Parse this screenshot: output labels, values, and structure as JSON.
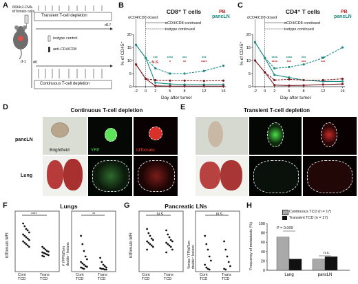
{
  "panels": {
    "A": "A",
    "B": "B",
    "C": "C",
    "D": "D",
    "E": "E",
    "F": "F",
    "G": "G",
    "H": "H"
  },
  "panelA": {
    "mouse_label_1": "6694c2-OVA-",
    "mouse_label_2": "tdTomato cells",
    "d_minus1": "d-1",
    "d0": "d0",
    "d17": "d17",
    "transient_label": "Transient T-cell depletion",
    "isotype_label": "isotype control",
    "anti_label": "anti-CD4/CD8",
    "continuous_label": "Continuous T-cell depletion"
  },
  "panelB": {
    "title": "CD8⁺ T cells",
    "legend_pb": "PB",
    "legend_panc": "pancLN",
    "dosed": "αCD4/CD8 dosed",
    "cont1": "αCD4/CD8 continued",
    "cont2": "isotype continued",
    "ylabel": "% of CD45⁺",
    "xlabel": "Day after tumor",
    "sig": [
      {
        "text": "***",
        "color": "#1a8a82"
      },
      {
        "text": "N.S.",
        "color": "#c0282c"
      },
      {
        "text": "****",
        "color": "#1a8a82"
      },
      {
        "text": "*",
        "color": "#c0282c"
      },
      {
        "text": "***",
        "color": "#1a8a82"
      },
      {
        "text": "**",
        "color": "#c0282c"
      },
      {
        "text": "***",
        "color": "#1a8a82"
      },
      {
        "text": "****",
        "color": "#c0282c"
      }
    ]
  },
  "panelC": {
    "title": "CD4⁺ T cells",
    "legend_pb": "PB",
    "legend_panc": "pancLN",
    "dosed": "αCD4/CD8 dosed",
    "cont1": "αCD4/CD8 continued",
    "cont2": "isotype continued",
    "ylabel": "% of CD45⁺",
    "xlabel": "Day after tumor",
    "sig": [
      {
        "text": "****",
        "color": "#1a8a82"
      },
      {
        "text": "****",
        "color": "#c0282c"
      },
      {
        "text": "****",
        "color": "#1a8a82"
      },
      {
        "text": "***",
        "color": "#c0282c"
      },
      {
        "text": "***",
        "color": "#1a8a82"
      },
      {
        "text": "***",
        "color": "#c0282c"
      },
      {
        "text": "***",
        "color": "#1a8a82"
      },
      {
        "text": "***",
        "color": "#c0282c"
      }
    ]
  },
  "panelD": {
    "title": "Continuous T-cell depletion",
    "row1": "pancLN",
    "row2": "Lung",
    "brightfield": "Brightfield",
    "yfp": "YFP",
    "tdtomato": "tdTomato"
  },
  "panelE": {
    "title": "Transient T-cell depletion"
  },
  "panelF": {
    "title": "Lungs",
    "ylabel1": "tdTomato MFI",
    "ylabel2a": "# YFP/tdTom",
    "ylabel2b": "double⁺ lesions",
    "sig1": "****",
    "sig2": "**",
    "x1": "Cont",
    "x2": "TCD",
    "x3": "Trans",
    "x4": "TCD"
  },
  "panelG": {
    "title": "Pancreatic LNs",
    "ylabel1": "tdTomato MFI",
    "ylabel2a": "%mice YFP/tdTom",
    "ylabel2b": "double⁺ lesions",
    "sig1": "N.S.",
    "sig2": "N.S.",
    "x1": "Cont",
    "x2": "TCD",
    "x3": "Trans",
    "x4": "TCD"
  },
  "panelH": {
    "legend1": "Continuous TCD (n = 17)",
    "legend2": "Transient TCD (n = 17)",
    "ylabel": "Frequency of metastasis (%)",
    "p": "P = 0.009",
    "ns": "n.s.",
    "cat1": "Lung",
    "cat2": "pancLN"
  },
  "colors": {
    "teal": "#1a8a82",
    "red": "#7d1a22",
    "bright_red": "#c0282c",
    "gray_bar": "#a9a9a9",
    "black_bar": "#111111"
  },
  "chart_data": [
    {
      "type": "line",
      "title": "CD8⁺ T cells",
      "xlabel": "Day after tumor",
      "ylabel": "% of CD45⁺",
      "x": [
        -2,
        0,
        2,
        5,
        8,
        12,
        16
      ],
      "xlim": [
        -2.5,
        16.5
      ],
      "ylim": [
        0,
        20
      ],
      "xticks": [
        -2,
        0,
        2,
        5,
        8,
        12,
        16
      ],
      "yticks": [
        0,
        5,
        10,
        15,
        20
      ],
      "series": [
        {
          "name": "pancLN",
          "line": "isotype",
          "values": [
            16,
            11,
            7,
            5,
            5,
            6,
            8
          ],
          "color": "#1a8a82",
          "dash": true
        },
        {
          "name": "pancLN",
          "line": "depleted",
          "values": [
            16,
            11,
            1.5,
            1,
            0.8,
            0.8,
            0.8
          ],
          "color": "#1a8a82",
          "dash": false
        },
        {
          "name": "PB",
          "line": "isotype",
          "values": [
            8.5,
            3,
            2.5,
            2.3,
            2.3,
            2.2,
            2.3
          ],
          "color": "#7d1a22",
          "dash": true
        },
        {
          "name": "PB",
          "line": "depleted",
          "values": [
            8.5,
            3,
            0.3,
            0.2,
            0.2,
            0.2,
            0.2
          ],
          "color": "#7d1a22",
          "dash": false
        }
      ]
    },
    {
      "type": "line",
      "title": "CD4⁺ T cells",
      "xlabel": "Day after tumor",
      "ylabel": "% of CD45⁺",
      "x": [
        -2,
        0,
        2,
        5,
        8,
        12,
        16
      ],
      "xlim": [
        -2.5,
        16.5
      ],
      "ylim": [
        0,
        20
      ],
      "xticks": [
        -2,
        0,
        2,
        5,
        8,
        12,
        16
      ],
      "yticks": [
        0,
        5,
        10,
        15,
        20
      ],
      "series": [
        {
          "name": "pancLN",
          "line": "isotype",
          "values": [
            17,
            11,
            7,
            7.5,
            8.5,
            11,
            15
          ],
          "color": "#1a8a82",
          "dash": true
        },
        {
          "name": "pancLN",
          "line": "depleted",
          "values": [
            17,
            11,
            4.5,
            3.5,
            2.5,
            2,
            2
          ],
          "color": "#1a8a82",
          "dash": false
        },
        {
          "name": "PB",
          "line": "isotype",
          "values": [
            10,
            5.5,
            2.5,
            2.8,
            2.5,
            2.5,
            3
          ],
          "color": "#7d1a22",
          "dash": true
        },
        {
          "name": "PB",
          "line": "depleted",
          "values": [
            10,
            5.5,
            0.6,
            0.4,
            0.5,
            0.8,
            1
          ],
          "color": "#7d1a22",
          "dash": false
        }
      ]
    },
    {
      "type": "bar",
      "categories": [
        "Lung",
        "pancLN"
      ],
      "ylabel": "Frequency of metastasis (%)",
      "ylim": [
        0,
        100
      ],
      "yticks": [
        0,
        20,
        40,
        60,
        80,
        100
      ],
      "series": [
        {
          "name": "Continuous TCD (n = 17)",
          "values": [
            71,
            24
          ],
          "color": "#a9a9a9"
        },
        {
          "name": "Transient TCD (n = 17)",
          "values": [
            24,
            29
          ],
          "color": "#111111"
        }
      ]
    }
  ]
}
